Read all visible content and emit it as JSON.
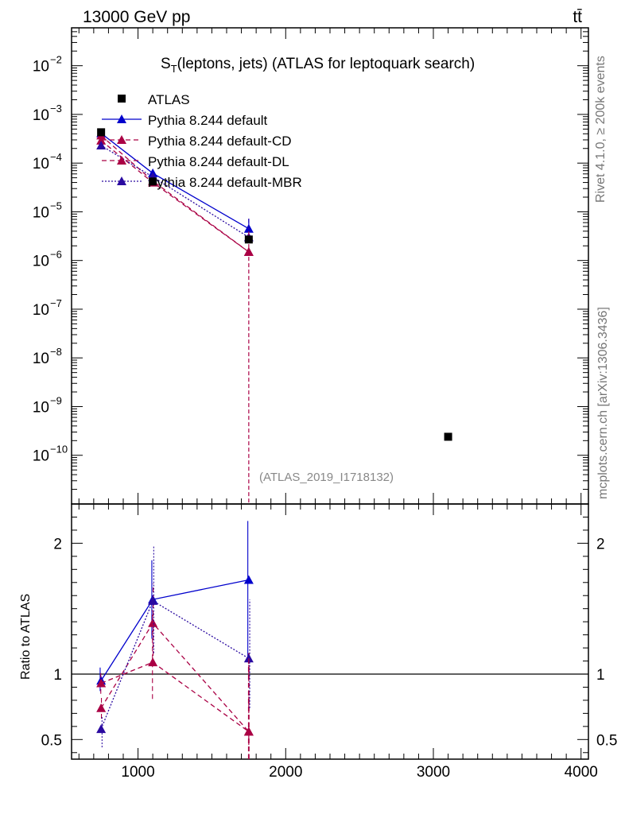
{
  "header": {
    "left": "13000 GeV pp",
    "right": "tt̄"
  },
  "side": {
    "rivet": "Rivet 4.1.0, ≥ 200k events",
    "mcplots": "mcplots.cern.ch [arXiv:1306.3436]"
  },
  "chart_data": {
    "type": "line",
    "title": "S_T(leptons, jets) (ATLAS for leptoquark search)",
    "title_main": "S",
    "title_sub": "T",
    "title_rest": "(leptons, jets) (ATLAS for leptoquark search)",
    "analysis_id": "(ATLAS_2019_I1718132)",
    "xlim": [
      550,
      4050
    ],
    "ylim": [
      1e-11,
      0.06
    ],
    "yscale": "log",
    "x_ticks": [
      1000,
      2000,
      3000,
      4000
    ],
    "x_tick_labels": [
      "1000",
      "2000",
      "3000",
      "4000"
    ],
    "y_ticks": [
      1e-10,
      1e-09,
      1e-08,
      1e-07,
      1e-06,
      1e-05,
      0.0001,
      0.001,
      0.01
    ],
    "y_tick_labels": [
      {
        "base": "10",
        "exp": "−10"
      },
      {
        "base": "10",
        "exp": "−9"
      },
      {
        "base": "10",
        "exp": "−8"
      },
      {
        "base": "10",
        "exp": "−7"
      },
      {
        "base": "10",
        "exp": "−6"
      },
      {
        "base": "10",
        "exp": "−5"
      },
      {
        "base": "10",
        "exp": "−4"
      },
      {
        "base": "10",
        "exp": "−3"
      },
      {
        "base": "10",
        "exp": "−2"
      }
    ],
    "legend_position": "top-left",
    "data": {
      "name": "ATLAS",
      "color": "#000000",
      "points": [
        {
          "x": 750,
          "y": 0.00043
        },
        {
          "x": 1100,
          "y": 4.2e-05
        },
        {
          "x": 1750,
          "y": 2.7e-06
        },
        {
          "x": 3100,
          "y": 2.4e-10
        }
      ]
    },
    "series": [
      {
        "name": "Pythia 8.244 default",
        "color": "#0000cc",
        "dash": "solid",
        "x": [
          750,
          1100,
          1750
        ],
        "y": [
          0.00041,
          6.2e-05,
          4.5e-06
        ],
        "ratio": [
          0.95,
          1.57,
          1.72
        ],
        "ratio_err": [
          [
            0.08,
            0.1
          ],
          [
            0.3,
            0.3
          ],
          [
            0.6,
            0.45
          ]
        ]
      },
      {
        "name": "Pythia 8.244 default-CD",
        "color": "#aa0044",
        "dash": "dashed",
        "x": [
          750,
          1100,
          1750
        ],
        "y": [
          0.00037,
          4.3e-05,
          1.5e-06
        ],
        "ratio": [
          0.93,
          1.09,
          0.56
        ],
        "ratio_err": [
          [
            0.08,
            0.1
          ],
          [
            0.28,
            0.4
          ],
          [
            0.56,
            0.6
          ]
        ]
      },
      {
        "name": "Pythia 8.244 default-DL",
        "color": "#aa0044",
        "dash": "dashed",
        "x": [
          750,
          1100,
          1750
        ],
        "y": [
          0.00029,
          4e-05,
          1.5e-06
        ],
        "ratio": [
          0.74,
          1.39,
          0.56
        ],
        "ratio_err": [
          [
            0.08,
            0.1
          ],
          [
            0.25,
            0.3
          ],
          [
            0.56,
            0.6
          ]
        ]
      },
      {
        "name": "Pythia 8.244 default-MBR",
        "color": "#2a0aa0",
        "dash": "dotted",
        "x": [
          750,
          1100,
          1750
        ],
        "y": [
          0.00023,
          5.2e-05,
          3e-06
        ],
        "ratio": [
          0.58,
          1.56,
          1.12
        ],
        "ratio_err": [
          [
            0.14,
            0.1
          ],
          [
            0.4,
            0.42
          ],
          [
            0.38,
            0.45
          ]
        ]
      }
    ],
    "ratio_panel": {
      "ylabel": "Ratio to ATLAS",
      "ylim": [
        0.35,
        2.3
      ],
      "y_ticks": [
        0.5,
        1,
        2
      ],
      "y_tick_labels": [
        "0.5",
        "1",
        "2"
      ],
      "reference": 1
    }
  }
}
